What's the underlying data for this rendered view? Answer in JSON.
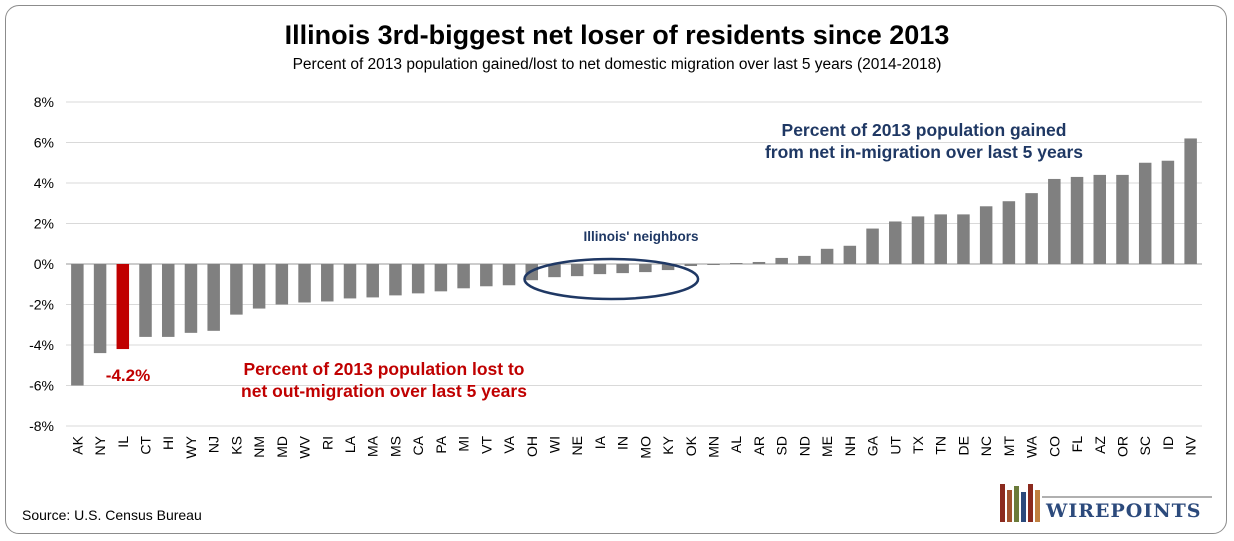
{
  "chart_data": {
    "type": "bar",
    "title": "Illinois 3rd-biggest net loser of residents since 2013",
    "subtitle": "Percent of 2013 population gained/lost to net domestic migration over last 5 years (2014-2018)",
    "ylim": [
      -8,
      8
    ],
    "yticks": [
      -8,
      -6,
      -4,
      -2,
      0,
      2,
      4,
      6,
      8
    ],
    "ytick_labels": [
      "-8%",
      "-6%",
      "-4%",
      "-2%",
      "0%",
      "2%",
      "4%",
      "6%",
      "8%"
    ],
    "grid": "horizontal",
    "categories": [
      "AK",
      "NY",
      "IL",
      "CT",
      "HI",
      "WY",
      "NJ",
      "KS",
      "NM",
      "MD",
      "WV",
      "RI",
      "LA",
      "MA",
      "MS",
      "CA",
      "PA",
      "MI",
      "VT",
      "VA",
      "OH",
      "WI",
      "NE",
      "IA",
      "IN",
      "MO",
      "KY",
      "OK",
      "MN",
      "AL",
      "AR",
      "SD",
      "ND",
      "ME",
      "NH",
      "GA",
      "UT",
      "TX",
      "TN",
      "DE",
      "NC",
      "MT",
      "WA",
      "CO",
      "FL",
      "AZ",
      "OR",
      "SC",
      "ID",
      "NV"
    ],
    "values": [
      -6.0,
      -4.4,
      -4.2,
      -3.6,
      -3.6,
      -3.4,
      -3.3,
      -2.5,
      -2.2,
      -2.0,
      -1.9,
      -1.85,
      -1.7,
      -1.65,
      -1.55,
      -1.45,
      -1.35,
      -1.2,
      -1.1,
      -1.05,
      -0.8,
      -0.65,
      -0.6,
      -0.5,
      -0.45,
      -0.4,
      -0.3,
      -0.1,
      -0.05,
      0.05,
      0.1,
      0.3,
      0.4,
      0.75,
      0.9,
      1.75,
      2.1,
      2.35,
      2.45,
      2.45,
      2.85,
      3.1,
      3.5,
      4.2,
      4.3,
      4.4,
      4.4,
      5.0,
      5.1,
      6.2
    ],
    "bar_color": "#808080",
    "highlight": {
      "category": "IL",
      "color": "#c00000",
      "label": "-4.2%"
    },
    "annotations": {
      "gained_line1": "Percent of 2013 population gained",
      "gained_line2": "from net in-migration over last 5 years",
      "gained_color": "#1f3864",
      "lost_line1": "Percent of 2013 population lost to",
      "lost_line2": "net out-migration over last 5 years",
      "lost_color": "#c00000",
      "neighbors": "Illinois' neighbors",
      "neighbors_color": "#1f3864",
      "neighbors_categories": [
        "WI",
        "KY"
      ]
    }
  },
  "source": "Source: U.S. Census Bureau",
  "logo": {
    "text": "WIREPOINTS"
  }
}
